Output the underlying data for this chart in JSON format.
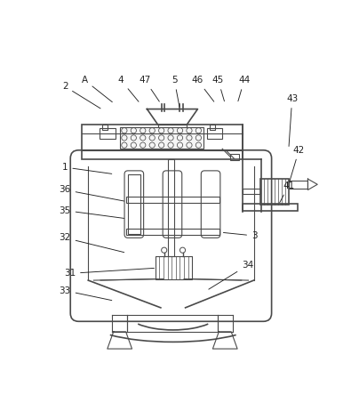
{
  "bg_color": "#ffffff",
  "line_color": "#4a4a4a",
  "line_width": 1.2,
  "thin_line": 0.8,
  "fig_width": 4.04,
  "fig_height": 4.44
}
